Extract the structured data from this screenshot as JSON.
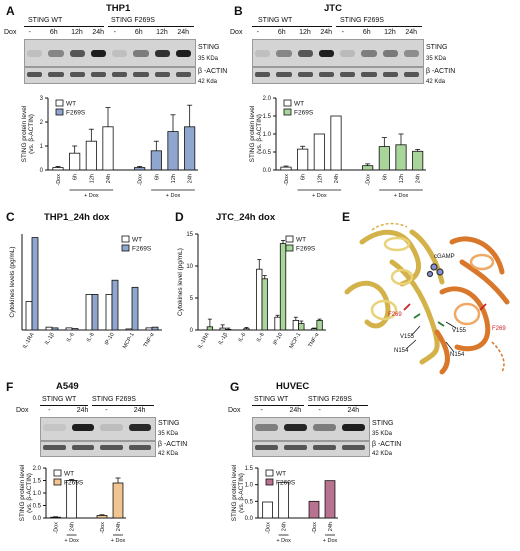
{
  "panels": {
    "A": {
      "letter": "A",
      "title": "THP1",
      "dox_label": "Dox",
      "group_wt": "STING WT",
      "group_mut": "STING F269S",
      "lanes": [
        "-",
        "6h",
        "12h",
        "24h",
        "-",
        "6h",
        "12h",
        "24h"
      ],
      "blot_labels": [
        {
          "name": "STING",
          "kda": "35 KDa"
        },
        {
          "name": "β -ACTIN",
          "kda": "42 Kda"
        }
      ]
    },
    "B": {
      "letter": "B",
      "title": "JTC",
      "dox_label": "Dox",
      "group_wt": "STING WT",
      "group_mut": "STING F269S",
      "lanes": [
        "-",
        "6h",
        "12h",
        "24h",
        "-",
        "6h",
        "12h",
        "24h"
      ],
      "blot_labels": [
        {
          "name": "STING",
          "kda": "35 KDa"
        },
        {
          "name": "β -ACTIN",
          "kda": "42 Kda"
        }
      ]
    },
    "C": {
      "letter": "C",
      "title": "THP1_24h dox"
    },
    "D": {
      "letter": "D",
      "title": "JTC_24h dox"
    },
    "E": {
      "letter": "E",
      "labels": [
        "cGAMP",
        "F269",
        "V155",
        "N154",
        "V155",
        "N154",
        "F269"
      ]
    },
    "F": {
      "letter": "F",
      "title": "A549",
      "dox_label": "Dox",
      "group_wt": "STING WT",
      "group_mut": "STING F269S",
      "lanes": [
        "-",
        "24h",
        "-",
        "24h"
      ],
      "blot_labels": [
        {
          "name": "STING",
          "kda": "35 KDa"
        },
        {
          "name": "β -ACTIN",
          "kda": "42 KDa"
        }
      ]
    },
    "G": {
      "letter": "G",
      "title": "HUVEC",
      "dox_label": "Dox",
      "group_wt": "STING WT",
      "group_mut": "STING F269S",
      "lanes": [
        "-",
        "24h",
        "-",
        "24h"
      ],
      "blot_labels": [
        {
          "name": "STING",
          "kda": "35 KDa"
        },
        {
          "name": "β -ACTIN",
          "kda": "42 KDa"
        }
      ]
    }
  },
  "colors": {
    "wt": "#ffffff",
    "thp1_mut": "#8fa7cf",
    "jtc_mut": "#a9d49a",
    "a549_mut": "#f1c490",
    "huvec_mut": "#b97390"
  },
  "chart_data": [
    {
      "id": "A",
      "type": "bar",
      "ylabel": "STING protein level\n(vs. β-ACTIN)",
      "ylim": [
        0,
        3
      ],
      "yticks": [
        "0",
        "1",
        "2",
        "3"
      ],
      "categories": [
        "-Dox",
        "6h",
        "12h",
        "24h",
        "-Dox",
        "6h",
        "12h",
        "24h"
      ],
      "group_label": "+ Dox",
      "series": [
        {
          "name": "WT",
          "values": [
            0.1,
            0.7,
            1.2,
            1.8,
            null,
            null,
            null,
            null
          ],
          "err": [
            0.05,
            0.3,
            0.5,
            0.8,
            null,
            null,
            null,
            null
          ]
        },
        {
          "name": "F269S",
          "values": [
            null,
            null,
            null,
            null,
            0.1,
            0.8,
            1.6,
            1.8
          ],
          "err": [
            null,
            null,
            null,
            null,
            0.05,
            0.4,
            0.7,
            0.9
          ]
        }
      ]
    },
    {
      "id": "B",
      "type": "bar",
      "ylabel": "STING protein level\n(vs. β-ACTIN)",
      "ylim": [
        0,
        2.0
      ],
      "yticks": [
        "0.0",
        "0.5",
        "1.0",
        "1.5",
        "2.0"
      ],
      "categories": [
        "-Dox",
        "6h",
        "12h",
        "24h",
        "-Dox",
        "6h",
        "12h",
        "24h"
      ],
      "group_label": "+ Dox",
      "series": [
        {
          "name": "WT",
          "values": [
            0.08,
            0.58,
            1.0,
            1.5,
            null,
            null,
            null,
            null
          ],
          "err": [
            0.03,
            0.08,
            0.0,
            0.0,
            null,
            null,
            null,
            null
          ]
        },
        {
          "name": "F269S",
          "values": [
            null,
            null,
            null,
            null,
            0.12,
            0.65,
            0.7,
            0.52
          ],
          "err": [
            null,
            null,
            null,
            null,
            0.05,
            0.25,
            0.3,
            0.05
          ]
        }
      ]
    },
    {
      "id": "C",
      "type": "bar",
      "ylabel": "Cytokines levels (pg/mL)",
      "ylim": [
        0,
        2700
      ],
      "categories": [
        "IL-1RA",
        "IL-1β",
        "IL-6",
        "IL-8",
        "IP-10",
        "MCP-1",
        "TNF-α"
      ],
      "series": [
        {
          "name": "WT",
          "values": [
            800,
            80,
            60,
            1000,
            1000,
            30,
            60
          ]
        },
        {
          "name": "F269S",
          "values": [
            2600,
            60,
            40,
            1000,
            1400,
            1200,
            80
          ]
        }
      ]
    },
    {
      "id": "D",
      "type": "bar",
      "ylabel": "Cytokines level (pg/mL)",
      "ylim": [
        0,
        15
      ],
      "yticks": [
        "0",
        "5",
        "10",
        "15"
      ],
      "categories": [
        "IL-1RA",
        "IL-1β",
        "IL-6",
        "IL-8",
        "IP-10",
        "MCP-1",
        "TNF-α"
      ],
      "series": [
        {
          "name": "WT",
          "values": [
            0,
            0.3,
            0,
            9.5,
            2,
            1.5,
            0.2
          ],
          "err": [
            0,
            0.5,
            0,
            1.5,
            0.3,
            0.5,
            0.1
          ]
        },
        {
          "name": "F269S",
          "values": [
            0.5,
            0.1,
            0.2,
            8,
            13.5,
            1,
            1.5
          ],
          "err": [
            1.2,
            0.2,
            0.2,
            0.5,
            0.5,
            0.4,
            0.2
          ]
        }
      ]
    },
    {
      "id": "F",
      "type": "bar",
      "ylabel": "STING protein level\n(vs. β-ACTIN)",
      "ylim": [
        0,
        2.0
      ],
      "yticks": [
        "0.0",
        "0.5",
        "1.0",
        "1.5",
        "2.0"
      ],
      "categories": [
        "-Dox",
        "24h",
        "-Dox",
        "24h"
      ],
      "group_label": "+ Dox",
      "series": [
        {
          "name": "WT",
          "values": [
            0.03,
            1.5,
            null,
            null
          ],
          "err": [
            0.02,
            0.04,
            null,
            null
          ]
        },
        {
          "name": "F269S",
          "values": [
            null,
            null,
            0.1,
            1.4
          ],
          "err": [
            null,
            null,
            0.03,
            0.2
          ]
        }
      ]
    },
    {
      "id": "G",
      "type": "bar",
      "ylabel": "STING protein level\n(vs. β-ACTIN)",
      "ylim": [
        0,
        1.5
      ],
      "yticks": [
        "0.0",
        "0.5",
        "1.0",
        "1.5"
      ],
      "categories": [
        "-Dox",
        "24h",
        "-Dox",
        "24h"
      ],
      "group_label": "+ Dox",
      "series": [
        {
          "name": "WT",
          "values": [
            0.48,
            1.07,
            null,
            null
          ]
        },
        {
          "name": "F269S",
          "values": [
            null,
            null,
            0.5,
            1.12
          ]
        }
      ]
    }
  ]
}
